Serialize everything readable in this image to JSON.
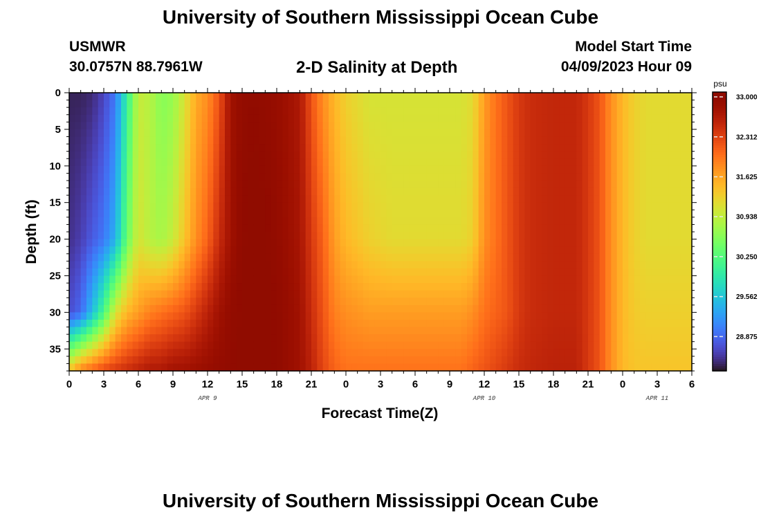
{
  "header": {
    "title": "University of Southern Mississippi Ocean Cube",
    "station_id": "USMWR",
    "station_coords": "30.0757N  88.7961W",
    "plot_title": "2-D Salinity at Depth",
    "model_start_label": "Model Start Time",
    "model_start_value": "04/09/2023 Hour 09"
  },
  "footer": {
    "title": "University of Southern Mississippi Ocean Cube"
  },
  "chart_data": {
    "type": "heatmap",
    "title": "2-D Salinity at Depth",
    "xlabel": "Forecast Time(Z)",
    "ylabel": "Depth (ft)",
    "x_unit": "hours",
    "x_range": [
      0,
      54
    ],
    "x_tick_values": [
      0,
      3,
      6,
      9,
      12,
      15,
      18,
      21,
      24,
      27,
      30,
      33,
      36,
      39,
      42,
      45,
      48,
      51,
      54
    ],
    "x_tick_labels": [
      "0",
      "3",
      "6",
      "9",
      "12",
      "15",
      "18",
      "21",
      "0",
      "3",
      "6",
      "9",
      "12",
      "15",
      "18",
      "21",
      "0",
      "3",
      "6"
    ],
    "date_labels": [
      {
        "x": 12,
        "text": "APR 9"
      },
      {
        "x": 36,
        "text": "APR 10"
      },
      {
        "x": 51,
        "text": "APR 11"
      }
    ],
    "y_range": [
      0,
      38
    ],
    "y_reversed": true,
    "y_ticks": [
      0,
      5,
      10,
      15,
      20,
      25,
      30,
      35
    ],
    "colorbar": {
      "unit": "psu",
      "range": [
        28.2,
        33.0
      ],
      "tick_values": [
        33.0,
        32.312,
        31.625,
        30.938,
        30.25,
        29.562,
        28.875
      ],
      "tick_labels": [
        "33.000",
        "32.312",
        "31.625",
        "30.938",
        "30.250",
        "29.562",
        "28.875"
      ],
      "colormap": "turbo"
    },
    "cell_size": {
      "hours": 0.5,
      "feet": 1
    },
    "profile_columns": [
      "time_h",
      "salinity_surface",
      "salinity_at_20ft",
      "salinity_at_30ft",
      "salinity_at_38ft"
    ],
    "profiles": [
      [
        0,
        28.3,
        28.4,
        28.6,
        31.3
      ],
      [
        1,
        28.3,
        28.5,
        28.8,
        31.8
      ],
      [
        2,
        28.35,
        28.7,
        29.4,
        32.0
      ],
      [
        3,
        28.55,
        28.9,
        30.1,
        32.2
      ],
      [
        4,
        28.9,
        29.3,
        31.0,
        32.3
      ],
      [
        5,
        29.9,
        30.3,
        31.4,
        32.4
      ],
      [
        6,
        30.9,
        31.0,
        31.6,
        32.5
      ],
      [
        7,
        30.8,
        30.8,
        31.8,
        32.6
      ],
      [
        8,
        30.5,
        30.7,
        31.9,
        32.6
      ],
      [
        9,
        30.6,
        30.9,
        32.0,
        32.7
      ],
      [
        10,
        31.0,
        31.3,
        32.1,
        32.7
      ],
      [
        11,
        31.5,
        31.7,
        32.3,
        32.75
      ],
      [
        12,
        31.7,
        32.0,
        32.5,
        32.8
      ],
      [
        13,
        32.1,
        32.4,
        32.7,
        32.85
      ],
      [
        14,
        32.7,
        32.7,
        32.85,
        32.9
      ],
      [
        15,
        32.85,
        32.9,
        32.95,
        32.95
      ],
      [
        16,
        32.9,
        33.0,
        33.0,
        33.0
      ],
      [
        17,
        32.85,
        32.95,
        32.95,
        32.95
      ],
      [
        18,
        32.8,
        32.85,
        32.9,
        32.9
      ],
      [
        19,
        32.7,
        32.75,
        32.8,
        32.8
      ],
      [
        20,
        32.6,
        32.65,
        32.7,
        32.7
      ],
      [
        21,
        32.1,
        32.3,
        32.4,
        32.5
      ],
      [
        22,
        31.7,
        32.0,
        32.1,
        32.2
      ],
      [
        23,
        31.4,
        31.6,
        31.8,
        32.0
      ],
      [
        24,
        31.2,
        31.4,
        31.7,
        31.9
      ],
      [
        26,
        31.0,
        31.2,
        31.6,
        31.9
      ],
      [
        28,
        31.0,
        31.1,
        31.6,
        31.9
      ],
      [
        31,
        31.0,
        31.1,
        31.6,
        31.9
      ],
      [
        34,
        31.0,
        31.1,
        31.6,
        31.9
      ],
      [
        35,
        31.1,
        31.2,
        31.7,
        32.0
      ],
      [
        36,
        31.6,
        31.7,
        31.9,
        32.1
      ],
      [
        37,
        31.9,
        31.9,
        32.0,
        32.2
      ],
      [
        38,
        32.1,
        32.1,
        32.1,
        32.3
      ],
      [
        39,
        32.3,
        32.3,
        32.3,
        32.4
      ],
      [
        40,
        32.4,
        32.4,
        32.4,
        32.45
      ],
      [
        42,
        32.45,
        32.45,
        32.45,
        32.5
      ],
      [
        44,
        32.45,
        32.45,
        32.45,
        32.5
      ],
      [
        45,
        32.3,
        32.3,
        32.3,
        32.3
      ],
      [
        46,
        32.1,
        32.1,
        32.1,
        32.1
      ],
      [
        47,
        31.7,
        31.7,
        31.7,
        31.7
      ],
      [
        48,
        31.4,
        31.4,
        31.4,
        31.4
      ],
      [
        49,
        31.2,
        31.2,
        31.25,
        31.3
      ],
      [
        50,
        31.1,
        31.1,
        31.2,
        31.3
      ],
      [
        54,
        31.1,
        31.1,
        31.2,
        31.3
      ]
    ]
  }
}
